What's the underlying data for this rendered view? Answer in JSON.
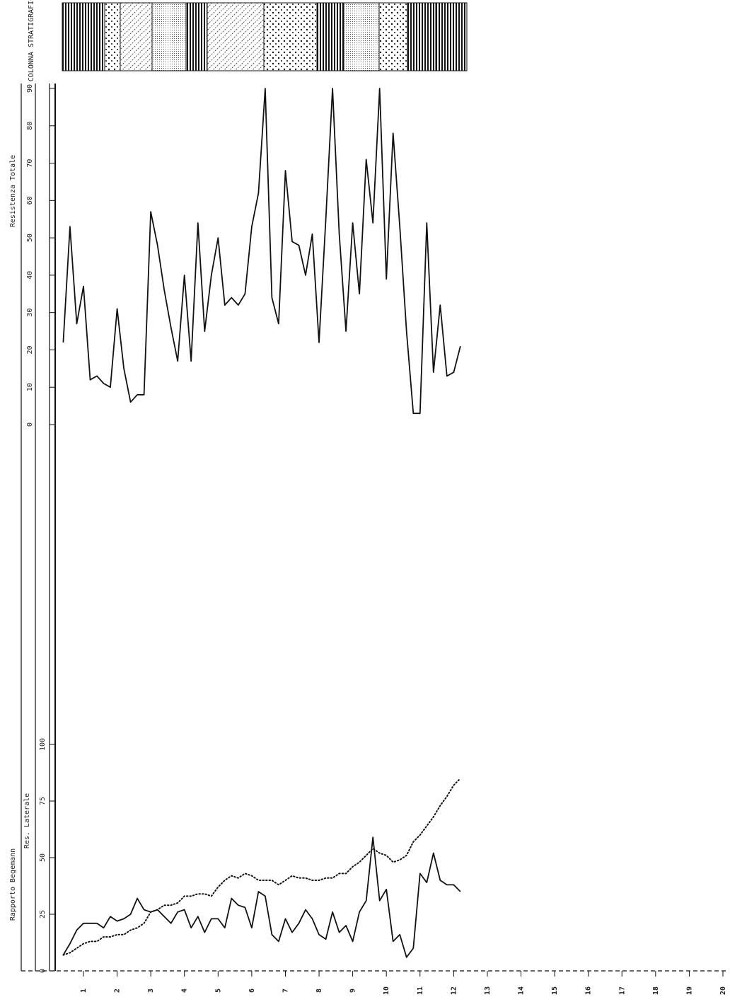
{
  "chart_data": [
    {
      "type": "line",
      "title": "COLONNA STRATIGRAFICA",
      "x": [
        0.4,
        0.6,
        0.8,
        1.0,
        1.2,
        1.4,
        1.6,
        1.8,
        2.0,
        2.2,
        2.4,
        2.6,
        2.8,
        3.0,
        3.2,
        3.4,
        3.6,
        3.8,
        4.0,
        4.2,
        4.4,
        4.6,
        4.8,
        5.0,
        5.2,
        5.4,
        5.6,
        5.8,
        6.0,
        6.2,
        6.4,
        6.6,
        6.8,
        7.0,
        7.2,
        7.4,
        7.6,
        7.8,
        8.0,
        8.2,
        8.4,
        8.6,
        8.8,
        9.0,
        9.2,
        9.4,
        9.6,
        9.8,
        10.0,
        10.2,
        10.4,
        10.6,
        10.8,
        11.0,
        11.2,
        11.4,
        11.6,
        11.8,
        12.0,
        12.2
      ],
      "series": [
        {
          "name": "Resistenza Totale",
          "color": "#111111",
          "dotted": false,
          "values": [
            22,
            53,
            27,
            37,
            12,
            13,
            11,
            10,
            31,
            15,
            6,
            8,
            8,
            57,
            48,
            36,
            26,
            17,
            40,
            17,
            54,
            25,
            40,
            50,
            32,
            34,
            32,
            35,
            53,
            62,
            90,
            34,
            27,
            68,
            49,
            48,
            40,
            51,
            22,
            55,
            90,
            51,
            25,
            54,
            35,
            71,
            54,
            90,
            39,
            78,
            53,
            25,
            3,
            3,
            54,
            14,
            32,
            13,
            14,
            21
          ]
        }
      ],
      "xlim": [
        0,
        20
      ],
      "ylim": [
        0,
        90
      ],
      "yticks": [
        0,
        10,
        20,
        30,
        40,
        50,
        60,
        70,
        80,
        90
      ]
    },
    {
      "type": "line",
      "x": [
        0.4,
        0.6,
        0.8,
        1.0,
        1.2,
        1.4,
        1.6,
        1.8,
        2.0,
        2.2,
        2.4,
        2.6,
        2.8,
        3.0,
        3.2,
        3.4,
        3.6,
        3.8,
        4.0,
        4.2,
        4.4,
        4.6,
        4.8,
        5.0,
        5.2,
        5.4,
        5.6,
        5.8,
        6.0,
        6.2,
        6.4,
        6.6,
        6.8,
        7.0,
        7.2,
        7.4,
        7.6,
        7.8,
        8.0,
        8.2,
        8.4,
        8.6,
        8.8,
        9.0,
        9.2,
        9.4,
        9.6,
        9.8,
        10.0,
        10.2,
        10.4,
        10.6,
        10.8,
        11.0,
        11.2,
        11.4,
        11.6,
        11.8,
        12.0,
        12.2
      ],
      "series": [
        {
          "name": "Rapporto Begemann",
          "color": "#111111",
          "dotted": false,
          "values": [
            7,
            12,
            18,
            21,
            21,
            21,
            19,
            24,
            22,
            23,
            25,
            32,
            27,
            26,
            27,
            24,
            21,
            26,
            27,
            19,
            24,
            17,
            23,
            23,
            19,
            32,
            29,
            28,
            19,
            35,
            33,
            16,
            13,
            23,
            17,
            21,
            27,
            23,
            16,
            14,
            26,
            17,
            20,
            13,
            26,
            31,
            59,
            31,
            36,
            13,
            16,
            6,
            10,
            43,
            39,
            52,
            40,
            38,
            38,
            35
          ]
        },
        {
          "name": "Res. Laterale",
          "color": "#111111",
          "dotted": true,
          "values": [
            7,
            8,
            10,
            12,
            13,
            13,
            15,
            15,
            16,
            16,
            18,
            19,
            21,
            26,
            27,
            29,
            29,
            30,
            33,
            33,
            34,
            34,
            33,
            37,
            40,
            42,
            41,
            43,
            42,
            40,
            40,
            40,
            38,
            40,
            42,
            41,
            41,
            40,
            40,
            41,
            41,
            43,
            43,
            46,
            48,
            51,
            54,
            52,
            51,
            48,
            49,
            51,
            57,
            60,
            64,
            68,
            73,
            77,
            82,
            85
          ]
        }
      ],
      "xlim": [
        0,
        20
      ],
      "ylim": [
        0,
        100
      ],
      "yticks": [
        0,
        25,
        50,
        75,
        100
      ],
      "xticks": [
        1,
        2,
        3,
        4,
        5,
        6,
        7,
        8,
        9,
        10,
        11,
        12,
        13,
        14,
        15,
        16,
        17,
        18,
        19,
        20
      ]
    }
  ]
}
